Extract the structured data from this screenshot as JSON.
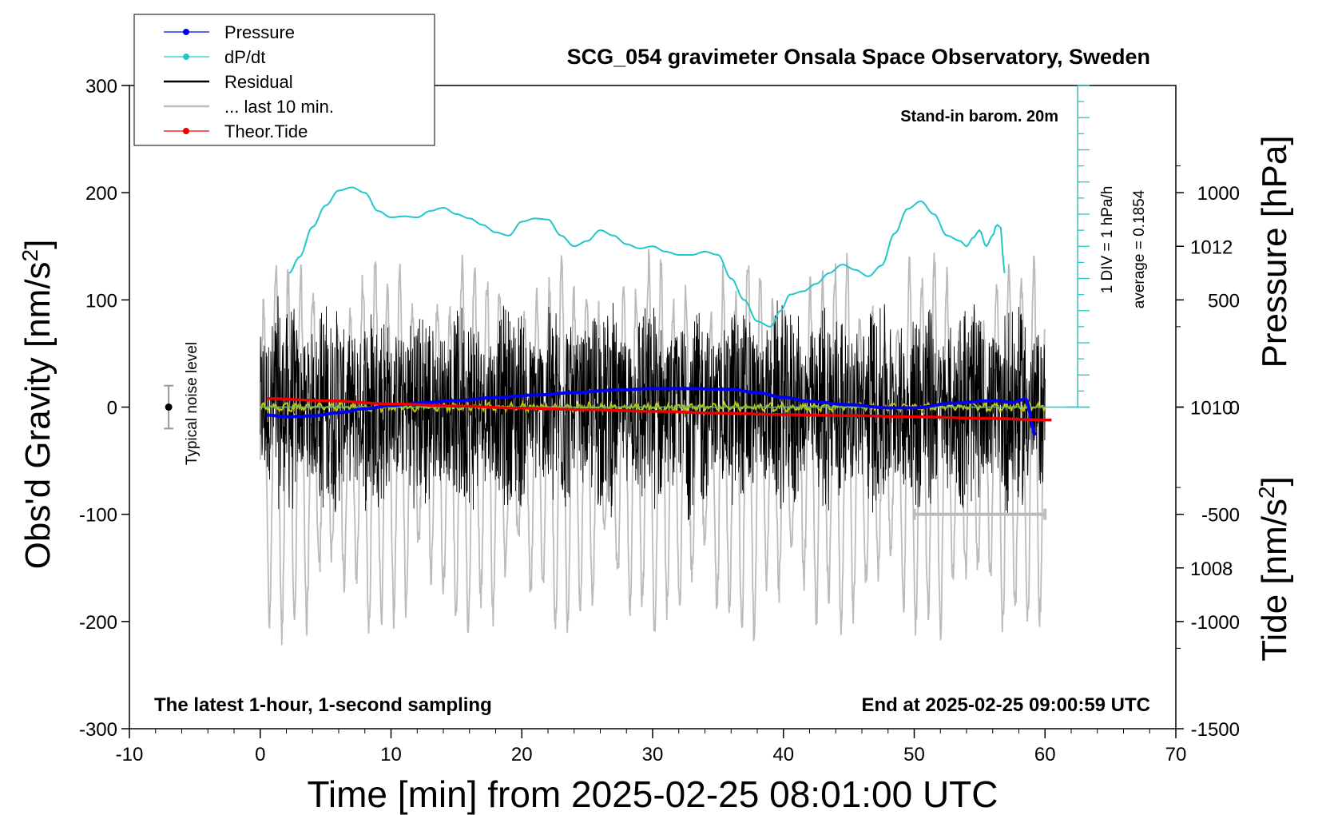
{
  "chart_data": {
    "type": "line",
    "title": "SCG_054 gravimeter Onsala Space Observatory, Sweden",
    "xlabel": "Time [min] from 2025-02-25 08:01:00 UTC",
    "ylabel_left": "Obs'd Gravity [nm/s",
    "ylabel_left_sup": "2",
    "ylabel_left_end": "]",
    "ylabel_pressure": "Pressure [hPa]",
    "ylabel_tide": "Tide [nm/s",
    "ylabel_tide_sup": "2",
    "ylabel_tide_end": "]",
    "xlim": [
      -10,
      70
    ],
    "ylim": [
      -300,
      300
    ],
    "pressure_lim": [
      1006,
      1014
    ],
    "tide_lim": [
      -1500,
      1500
    ],
    "x_ticks": [
      "-10",
      "0",
      "10",
      "20",
      "30",
      "40",
      "50",
      "60",
      "70"
    ],
    "y_ticks": [
      "300",
      "200",
      "100",
      "0",
      "-100",
      "-200",
      "-300"
    ],
    "pressure_ticks": [
      "1012",
      "1010",
      "1008"
    ],
    "tide_ticks": [
      "1000",
      "500",
      "0",
      "-500",
      "-1000",
      "-1500"
    ],
    "annotations": {
      "barometer": "Stand-in barom. 20m",
      "latest": "The latest 1-hour, 1-second sampling",
      "end": "End at 2025-02-25 09:00:59 UTC",
      "noise": "Typical noise level",
      "div": "1 DIV = 1 hPa/h",
      "average": "average = 0.1854"
    },
    "legend": [
      {
        "label": "Pressure",
        "color": "#0000ee",
        "marker": true
      },
      {
        "label": "dP/dt",
        "color": "#20c8c8",
        "marker": true
      },
      {
        "label": "Residual",
        "color": "#000000",
        "marker": false
      },
      {
        "label": "... last 10 min.",
        "color": "#bbbbbb",
        "marker": false
      },
      {
        "label": "Theor.Tide",
        "color": "#ee0000",
        "marker": true
      }
    ],
    "series": [
      {
        "name": "Pressure",
        "axis": "pressure",
        "color": "#0000ee",
        "x": [
          0.5,
          2,
          4,
          6,
          8,
          10,
          12,
          15,
          18,
          21,
          24,
          27,
          30,
          33,
          36,
          38,
          40,
          42,
          45,
          48,
          50,
          53,
          56,
          57.5,
          58.5,
          59.3
        ],
        "values": [
          1009.9,
          1009.88,
          1009.89,
          1009.93,
          1009.98,
          1010.02,
          1010.05,
          1010.08,
          1010.12,
          1010.15,
          1010.18,
          1010.21,
          1010.23,
          1010.23,
          1010.22,
          1010.18,
          1010.12,
          1010.07,
          1010.03,
          1009.99,
          1009.99,
          1010.05,
          1010.08,
          1010.06,
          1010.1,
          1009.65
        ]
      },
      {
        "name": "dP/dt",
        "axis": "left",
        "color": "#20c8c8",
        "x": [
          2.2,
          3,
          4,
          5,
          6,
          7,
          8,
          9,
          10,
          11,
          12,
          13,
          14,
          15,
          16,
          17,
          18,
          19,
          20,
          21,
          22,
          23,
          24,
          25,
          26,
          27,
          28,
          29,
          30,
          31,
          32,
          33,
          34,
          35,
          36,
          37,
          38,
          39,
          39.8,
          40.5,
          41.5,
          42.5,
          43.5,
          44.5,
          45.5,
          46.5,
          47.5,
          48.5,
          49.5,
          50.5,
          51.5,
          52.5,
          53.5,
          54,
          54.5,
          55,
          55.5,
          56,
          56.3,
          56.6,
          56.9
        ],
        "values": [
          125,
          140,
          168,
          188,
          202,
          205,
          200,
          183,
          177,
          178,
          177,
          183,
          186,
          180,
          176,
          170,
          163,
          160,
          173,
          176,
          175,
          160,
          150,
          155,
          165,
          160,
          152,
          148,
          150,
          145,
          142,
          142,
          145,
          142,
          120,
          100,
          80,
          75,
          90,
          105,
          108,
          115,
          125,
          133,
          128,
          122,
          132,
          162,
          185,
          192,
          180,
          160,
          155,
          150,
          158,
          165,
          150,
          160,
          170,
          168,
          125
        ]
      },
      {
        "name": "Theor.Tide",
        "axis": "tide",
        "color": "#ee0000",
        "x": [
          0.5,
          5,
          10,
          15,
          20,
          25,
          30,
          35,
          40,
          45,
          50,
          55,
          60.5
        ],
        "values": [
          40,
          30,
          15,
          5,
          -5,
          -12,
          -20,
          -28,
          -35,
          -40,
          -45,
          -52,
          -60
        ]
      }
    ]
  }
}
